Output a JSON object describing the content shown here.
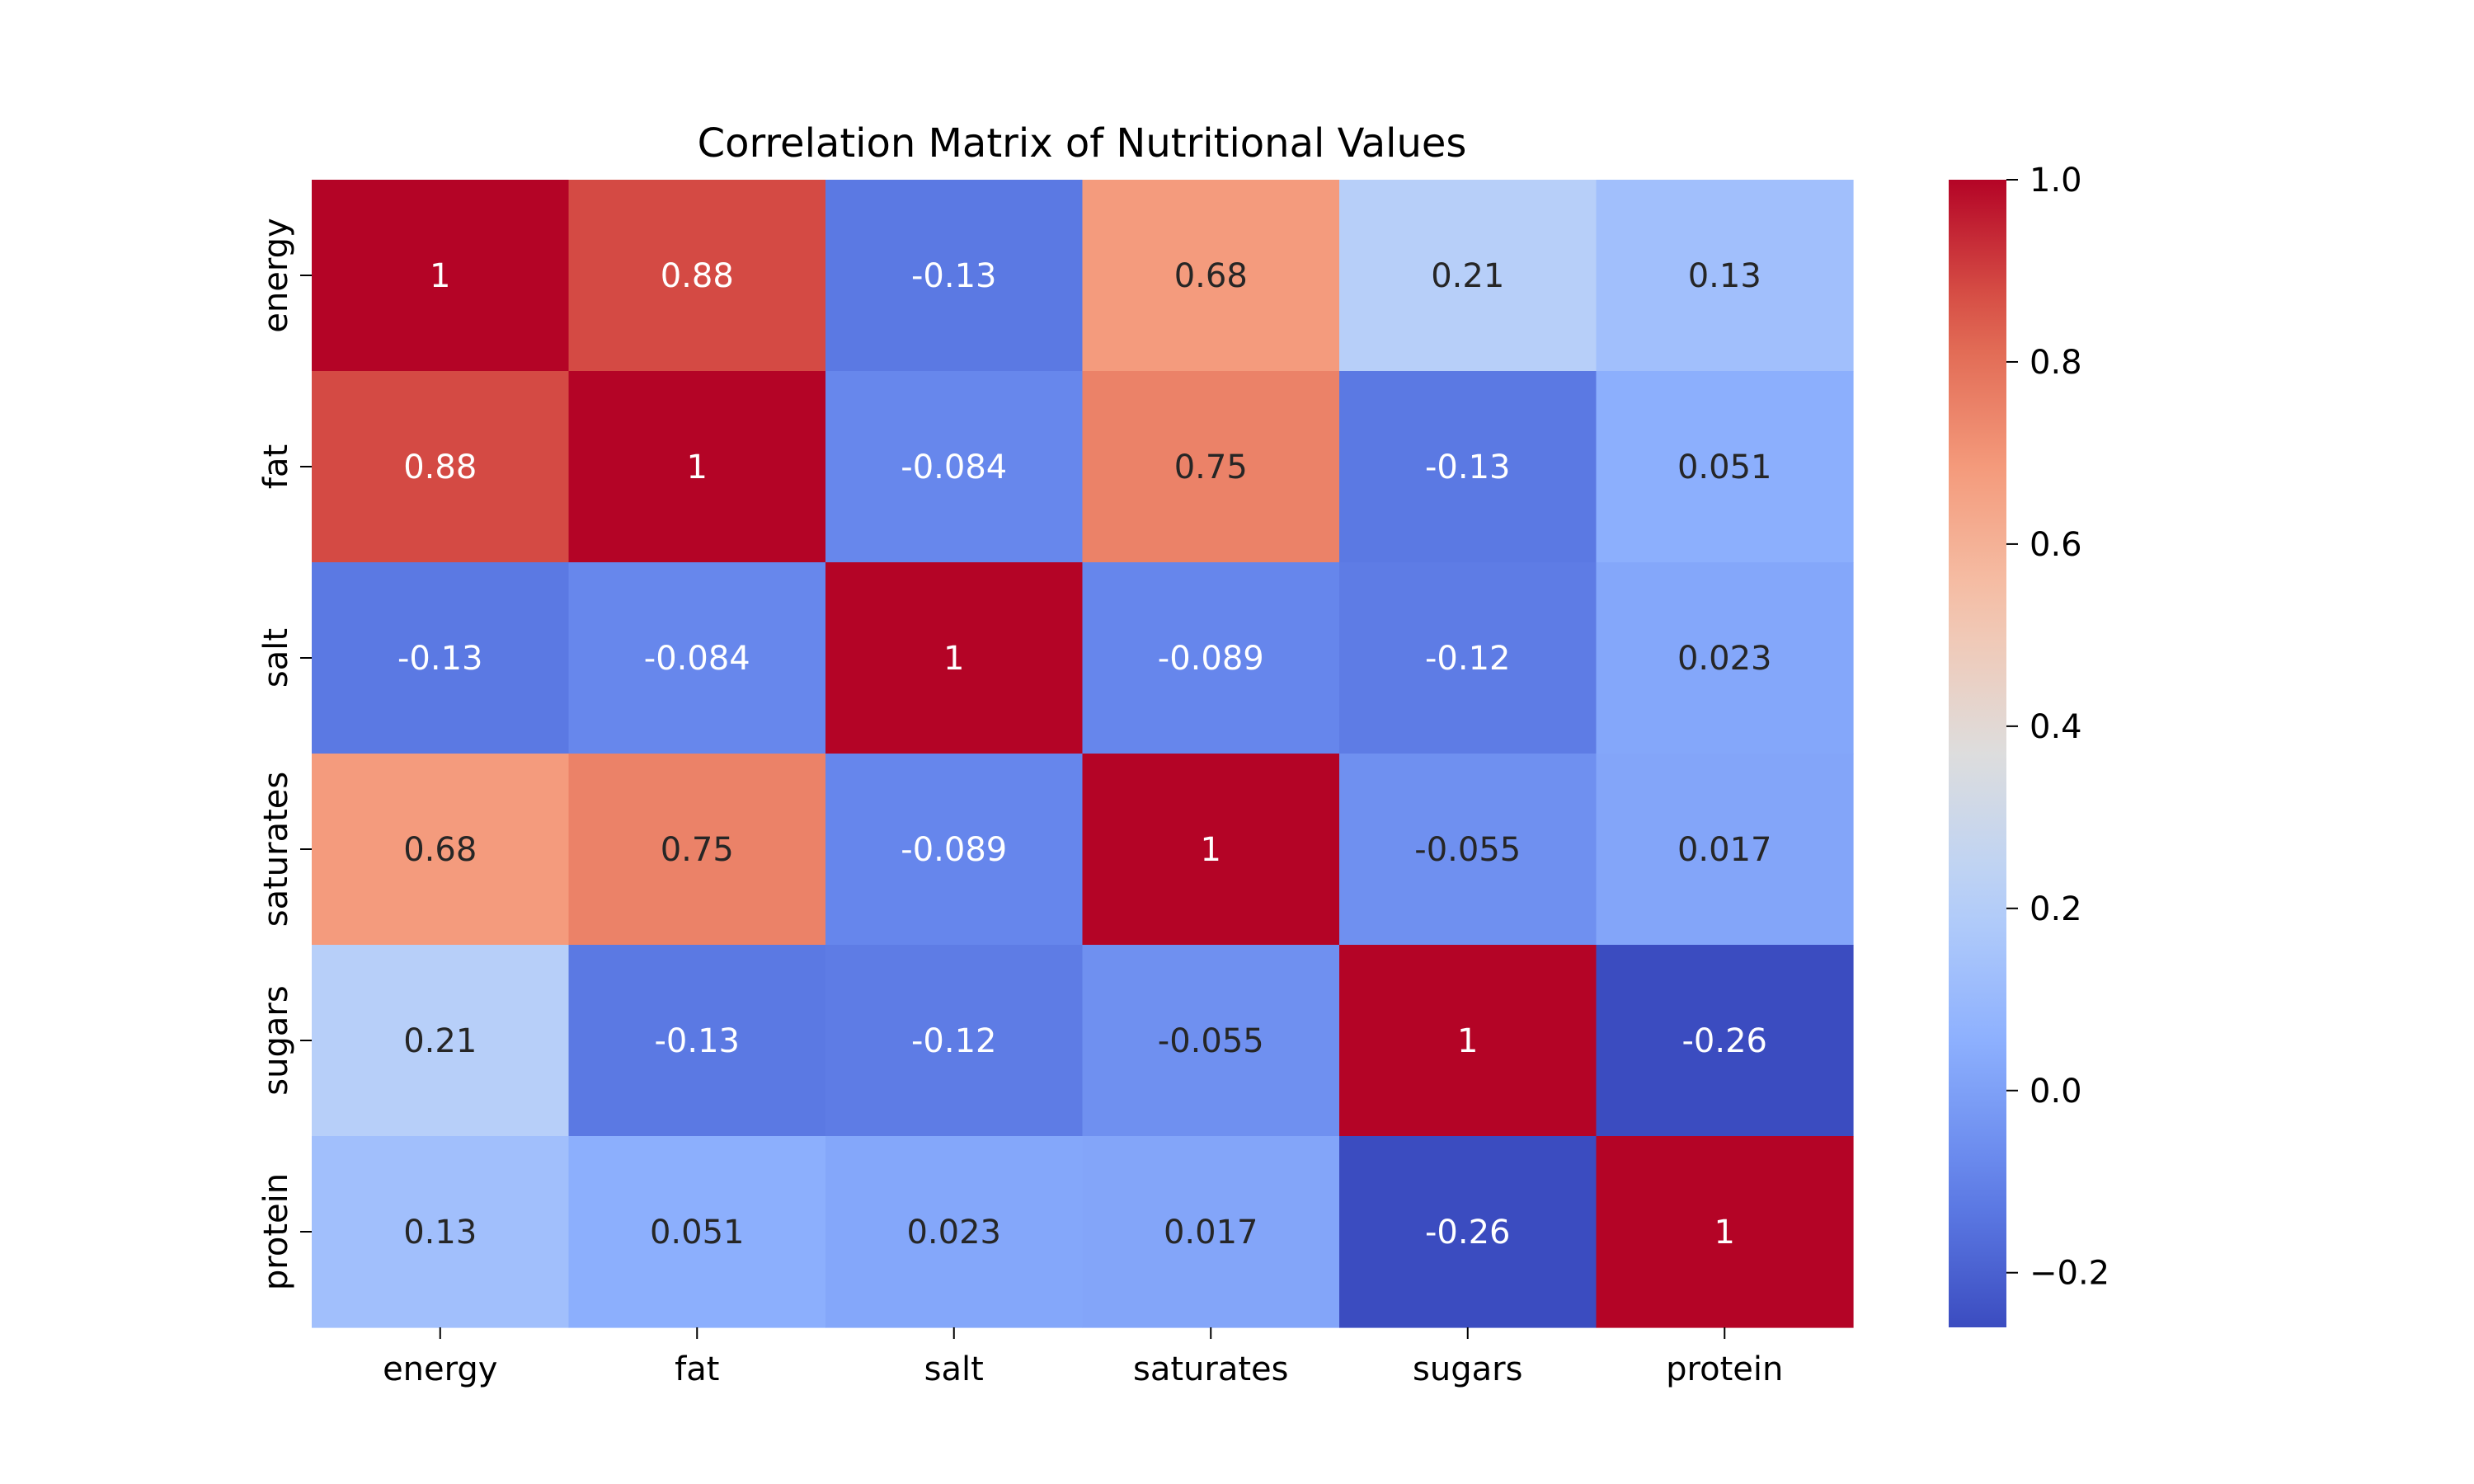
{
  "chart_data": {
    "type": "heatmap",
    "title": "Correlation Matrix of Nutritional Values",
    "xlabel": "",
    "ylabel": "",
    "x_categories": [
      "energy",
      "fat",
      "salt",
      "saturates",
      "sugars",
      "protein"
    ],
    "y_categories": [
      "energy",
      "fat",
      "salt",
      "saturates",
      "sugars",
      "protein"
    ],
    "values": [
      [
        1,
        0.88,
        -0.13,
        0.68,
        0.21,
        0.13
      ],
      [
        0.88,
        1,
        -0.084,
        0.75,
        -0.13,
        0.051
      ],
      [
        -0.13,
        -0.084,
        1,
        -0.089,
        -0.12,
        0.023
      ],
      [
        0.68,
        0.75,
        -0.089,
        1,
        -0.055,
        0.017
      ],
      [
        0.21,
        -0.13,
        -0.12,
        -0.055,
        1,
        -0.26
      ],
      [
        0.13,
        0.051,
        0.023,
        0.017,
        -0.26,
        1
      ]
    ],
    "annotations": [
      [
        "1",
        "0.88",
        "-0.13",
        "0.68",
        "0.21",
        "0.13"
      ],
      [
        "0.88",
        "1",
        "-0.084",
        "0.75",
        "-0.13",
        "0.051"
      ],
      [
        "-0.13",
        "-0.084",
        "1",
        "-0.089",
        "-0.12",
        "0.023"
      ],
      [
        "0.68",
        "0.75",
        "-0.089",
        "1",
        "-0.055",
        "0.017"
      ],
      [
        "0.21",
        "-0.13",
        "-0.12",
        "-0.055",
        "1",
        "-0.26"
      ],
      [
        "0.13",
        "0.051",
        "0.023",
        "0.017",
        "-0.26",
        "1"
      ]
    ],
    "colormap": "coolwarm",
    "value_range": [
      -0.26,
      1.0
    ],
    "colorbar": {
      "ticks": [
        -0.2,
        0.0,
        0.2,
        0.4,
        0.6,
        0.8,
        1.0
      ],
      "tick_labels": [
        "−0.2",
        "0.0",
        "0.2",
        "0.4",
        "0.6",
        "0.8",
        "1.0"
      ],
      "placement": "right"
    },
    "grid": false
  }
}
